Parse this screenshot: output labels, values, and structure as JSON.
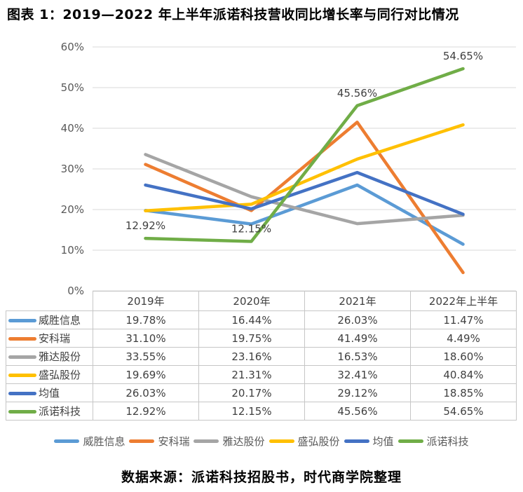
{
  "title": "图表 1：2019—2022 年上半年派诺科技营收同比增长率与同行对比情况",
  "source": "数据来源：派诺科技招股书，时代商学院整理",
  "chart_data": {
    "type": "line",
    "title": "图表 1：2019—2022 年上半年派诺科技营收同比增长率与同行对比情况",
    "categories": [
      "2019年",
      "2020年",
      "2021年",
      "2022年上半年"
    ],
    "series": [
      {
        "name": "威胜信息",
        "color": "#5B9BD5",
        "values": [
          19.78,
          16.44,
          26.03,
          11.47
        ],
        "data_labels": false
      },
      {
        "name": "安科瑞",
        "color": "#ED7D31",
        "values": [
          31.1,
          19.75,
          41.49,
          4.49
        ],
        "data_labels": false
      },
      {
        "name": "雅达股份",
        "color": "#A5A5A5",
        "values": [
          33.55,
          23.16,
          16.53,
          18.6
        ],
        "data_labels": false
      },
      {
        "name": "盛弘股份",
        "color": "#FFC000",
        "values": [
          19.69,
          21.31,
          32.41,
          40.84
        ],
        "data_labels": false
      },
      {
        "name": "均值",
        "color": "#4472C4",
        "values": [
          26.03,
          20.17,
          29.12,
          18.85
        ],
        "data_labels": false
      },
      {
        "name": "派诺科技",
        "color": "#70AD47",
        "values": [
          12.92,
          12.15,
          45.56,
          54.65
        ],
        "data_labels": true
      }
    ],
    "data_label_values": [
      "12.92%",
      "12.15%",
      "45.56%",
      "54.65%"
    ],
    "y_ticks": [
      "0%",
      "10%",
      "20%",
      "30%",
      "40%",
      "50%",
      "60%"
    ],
    "ylim": [
      0,
      60
    ],
    "grid": "horizontal",
    "gridline_color": "#D9D9D9",
    "axis_label_color": "#595959",
    "data_label_color": "#404040",
    "legend_position": "bottom"
  },
  "table": {
    "headers": [
      "2019年",
      "2020年",
      "2021年",
      "2022年上半年"
    ],
    "rows": [
      {
        "name": "威胜信息",
        "values": [
          "19.78%",
          "16.44%",
          "26.03%",
          "11.47%"
        ]
      },
      {
        "name": "安科瑞",
        "values": [
          "31.10%",
          "19.75%",
          "41.49%",
          "4.49%"
        ]
      },
      {
        "name": "雅达股份",
        "values": [
          "33.55%",
          "23.16%",
          "16.53%",
          "18.60%"
        ]
      },
      {
        "name": "盛弘股份",
        "values": [
          "19.69%",
          "21.31%",
          "32.41%",
          "40.84%"
        ]
      },
      {
        "name": "均值",
        "values": [
          "26.03%",
          "20.17%",
          "29.12%",
          "18.85%"
        ]
      },
      {
        "name": "派诺科技",
        "values": [
          "12.92%",
          "12.15%",
          "45.56%",
          "54.65%"
        ]
      }
    ]
  },
  "legend": {
    "items": [
      {
        "label": "威胜信息",
        "color": "#5B9BD5"
      },
      {
        "label": "安科瑞",
        "color": "#ED7D31"
      },
      {
        "label": "雅达股份",
        "color": "#A5A5A5"
      },
      {
        "label": "盛弘股份",
        "color": "#FFC000"
      },
      {
        "label": "均值",
        "color": "#4472C4"
      },
      {
        "label": "派诺科技",
        "color": "#70AD47"
      }
    ]
  }
}
